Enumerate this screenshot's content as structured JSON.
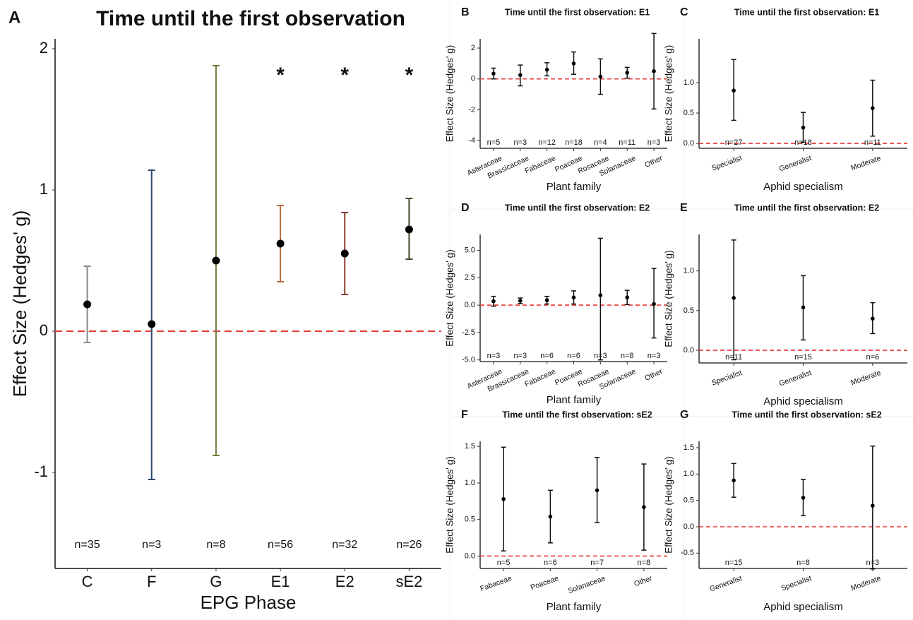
{
  "chart_data": [
    {
      "type": "errorbar",
      "panel_label": "A",
      "title": "Time until the first observation",
      "xlabel": "EPG Phase",
      "ylabel": "Effect Size (Hedges' g)",
      "categories": [
        "C",
        "F",
        "G",
        "E1",
        "E2",
        "sE2"
      ],
      "values": [
        0.19,
        0.05,
        0.5,
        0.62,
        0.55,
        0.72
      ],
      "lower": [
        -0.08,
        -1.05,
        -0.88,
        0.35,
        0.26,
        0.51
      ],
      "upper": [
        0.46,
        1.14,
        1.88,
        0.89,
        0.84,
        0.94
      ],
      "n_labels": [
        "n=35",
        "n=3",
        "n=8",
        "n=56",
        "n=32",
        "n=26"
      ],
      "annotations": [
        null,
        null,
        null,
        "*",
        "*",
        "*"
      ],
      "colors": [
        "#8a8a8a",
        "#2b4a6b",
        "#77763f",
        "#b86a3e",
        "#8a3d2e",
        "#3f4a2c"
      ],
      "reference_line": 0,
      "ylim": [
        -1.68,
        2.07
      ],
      "yticks": [
        2,
        1,
        0,
        -1
      ]
    },
    {
      "type": "errorbar",
      "panel_label": "B",
      "title": "Time until the first observation: E1",
      "xlabel": "Plant family",
      "ylabel": "Effect Size (Hedges' g)",
      "categories": [
        "Asteraceae",
        "Brassicaceae",
        "Fabaceae",
        "Poaceae",
        "Rosaceae",
        "Solanaceae",
        "Other"
      ],
      "values": [
        0.35,
        0.25,
        0.6,
        1.0,
        0.15,
        0.4,
        0.5
      ],
      "lower": [
        0.0,
        -0.45,
        0.2,
        0.3,
        -1.0,
        0.05,
        -1.95
      ],
      "upper": [
        0.7,
        0.9,
        1.05,
        1.75,
        1.3,
        0.75,
        2.95
      ],
      "n_labels": [
        "n=5",
        "n=3",
        "n=12",
        "n=18",
        "n=4",
        "n=11",
        "n=3"
      ],
      "color": "#111111",
      "reference_line": 0,
      "ylim": [
        -4.5,
        2.6
      ],
      "yticks": [
        2,
        0,
        -2,
        -4
      ]
    },
    {
      "type": "errorbar",
      "panel_label": "C",
      "title": "Time until the first observation: E1",
      "xlabel": "Aphid specialism",
      "ylabel": "Effect Size (Hedges' g)",
      "categories": [
        "Specialist",
        "Generalist",
        "Moderate"
      ],
      "values": [
        0.87,
        0.26,
        0.58
      ],
      "lower": [
        0.38,
        0.02,
        0.12
      ],
      "upper": [
        1.38,
        0.51,
        1.04
      ],
      "n_labels": [
        "n=27",
        "n=18",
        "n=11"
      ],
      "color": "#111111",
      "reference_line": 0,
      "ylim": [
        -0.08,
        1.72
      ],
      "yticks": [
        {
          "value": 1,
          "label": "1.0"
        },
        0.5,
        {
          "value": 0,
          "label": "0.0"
        }
      ]
    },
    {
      "type": "errorbar",
      "panel_label": "D",
      "title": "Time until the first observation: E2",
      "xlabel": "Plant family",
      "ylabel": "Effect Size (Hedges' g)",
      "categories": [
        "Asteraceae",
        "Brassicaceae",
        "Fabaceae",
        "Poaceae",
        "Rosaceae",
        "Solanaceae",
        "Other"
      ],
      "values": [
        0.35,
        0.4,
        0.45,
        0.7,
        0.9,
        0.7,
        0.1
      ],
      "lower": [
        -0.1,
        0.15,
        0.1,
        0.1,
        -5.0,
        0.05,
        -3.0
      ],
      "upper": [
        0.8,
        0.65,
        0.8,
        1.3,
        6.1,
        1.35,
        3.35
      ],
      "n_labels": [
        "n=3",
        "n=3",
        "n=6",
        "n=6",
        "n=3",
        "n=8",
        "n=3"
      ],
      "color": "#111111",
      "reference_line": 0,
      "ylim": [
        -5.15,
        6.45
      ],
      "yticks": [
        {
          "value": 5,
          "label": "5.0"
        },
        2.5,
        {
          "value": 0,
          "label": "0.0"
        },
        -2.5,
        {
          "value": -5,
          "label": "-5.0"
        }
      ]
    },
    {
      "type": "errorbar",
      "panel_label": "E",
      "title": "Time until the first observation: E2",
      "xlabel": "Aphid specialism",
      "ylabel": "Effect Size (Hedges' g)",
      "categories": [
        "Specialist",
        "Generalist",
        "Moderate"
      ],
      "values": [
        0.66,
        0.54,
        0.4
      ],
      "lower": [
        -0.12,
        0.13,
        0.21
      ],
      "upper": [
        1.39,
        0.94,
        0.6
      ],
      "n_labels": [
        "n=11",
        "n=15",
        "n=6"
      ],
      "color": "#111111",
      "reference_line": 0,
      "ylim": [
        -0.16,
        1.46
      ],
      "yticks": [
        {
          "value": 1,
          "label": "1.0"
        },
        0.5,
        {
          "value": 0,
          "label": "0.0"
        }
      ]
    },
    {
      "type": "errorbar",
      "panel_label": "F",
      "title": "Time until the first observation: sE2",
      "xlabel": "Plant family",
      "ylabel": "Effect Size (Hedges' g)",
      "categories": [
        "Fabaceae",
        "Poaceae",
        "Solanaceae",
        "Other"
      ],
      "values": [
        0.78,
        0.54,
        0.9,
        0.67
      ],
      "lower": [
        0.07,
        0.18,
        0.46,
        0.08
      ],
      "upper": [
        1.49,
        0.9,
        1.35,
        1.26
      ],
      "n_labels": [
        "n=5",
        "n=6",
        "n=7",
        "n=8"
      ],
      "color": "#111111",
      "reference_line": 0,
      "ylim": [
        -0.17,
        1.57
      ],
      "yticks": [
        1.5,
        {
          "value": 1,
          "label": "1.0"
        },
        0.5,
        {
          "value": 0,
          "label": "0.0"
        }
      ]
    },
    {
      "type": "errorbar",
      "panel_label": "G",
      "title": "Time until the first observation: sE2",
      "xlabel": "Aphid specialism",
      "ylabel": "Effect Size (Hedges' g)",
      "categories": [
        "Generalist",
        "Specialist",
        "Moderate"
      ],
      "values": [
        0.88,
        0.55,
        0.4
      ],
      "lower": [
        0.56,
        0.21,
        -0.8
      ],
      "upper": [
        1.2,
        0.9,
        1.53
      ],
      "n_labels": [
        "n=15",
        "n=8",
        "n=3"
      ],
      "color": "#111111",
      "reference_line": 0,
      "ylim": [
        -0.79,
        1.62
      ],
      "yticks": [
        1.5,
        {
          "value": 1,
          "label": "1.0"
        },
        0.5,
        {
          "value": 0,
          "label": "0.0"
        },
        -0.5
      ]
    }
  ]
}
